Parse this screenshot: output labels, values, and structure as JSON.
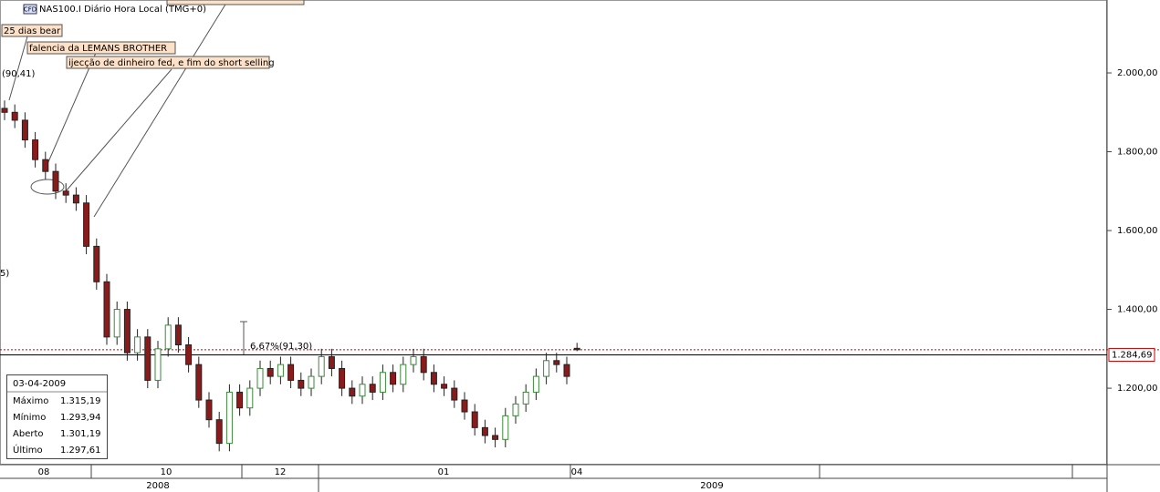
{
  "chart_data": {
    "type": "candlestick",
    "title": "NAS100.I Diário Hora Local (TMG+0)",
    "icon": "CFD",
    "up_color": "#3a8a3a",
    "down_color": "#8b1a1a",
    "grid": false,
    "ylim": [
      1006,
      2185
    ],
    "yticks": [
      {
        "value": 1200,
        "label": "1.200,00"
      },
      {
        "value": 1400,
        "label": "1.400,00"
      },
      {
        "value": 1600,
        "label": "1.600,00"
      },
      {
        "value": 1800,
        "label": "1.800,00"
      },
      {
        "value": 2000,
        "label": "2.000,00"
      }
    ],
    "price_line": {
      "value": 1284.69,
      "label": "1.284,69"
    },
    "month_labels": [
      "08",
      "10",
      "12",
      "01",
      "04"
    ],
    "year_labels": [
      "2008",
      "2009"
    ],
    "open": [
      1910,
      1900,
      1880,
      1830,
      1780,
      1750,
      1700,
      1690,
      1670,
      1560,
      1470,
      1330,
      1400,
      1290,
      1330,
      1220,
      1300,
      1360,
      1310,
      1260,
      1170,
      1120,
      1060,
      1190,
      1150,
      1200,
      1250,
      1230,
      1260,
      1220,
      1200,
      1230,
      1280,
      1250,
      1200,
      1180,
      1210,
      1190,
      1240,
      1210,
      1260,
      1280,
      1240,
      1210,
      1200,
      1170,
      1140,
      1100,
      1080,
      1070,
      1130,
      1160,
      1190,
      1230,
      1270,
      1260,
      1301.19
    ],
    "high": [
      1930,
      1920,
      1900,
      1850,
      1800,
      1770,
      1720,
      1710,
      1690,
      1580,
      1490,
      1420,
      1420,
      1350,
      1350,
      1320,
      1380,
      1380,
      1330,
      1280,
      1190,
      1140,
      1210,
      1210,
      1220,
      1270,
      1270,
      1280,
      1280,
      1240,
      1250,
      1300,
      1300,
      1270,
      1220,
      1230,
      1230,
      1260,
      1260,
      1280,
      1300,
      1300,
      1260,
      1230,
      1220,
      1190,
      1160,
      1120,
      1100,
      1150,
      1180,
      1210,
      1250,
      1290,
      1290,
      1280,
      1315.19
    ],
    "low": [
      1880,
      1860,
      1810,
      1760,
      1730,
      1680,
      1670,
      1650,
      1540,
      1450,
      1310,
      1310,
      1270,
      1270,
      1200,
      1200,
      1280,
      1290,
      1240,
      1150,
      1100,
      1040,
      1040,
      1130,
      1130,
      1180,
      1210,
      1210,
      1200,
      1180,
      1180,
      1210,
      1230,
      1180,
      1160,
      1160,
      1170,
      1170,
      1190,
      1190,
      1240,
      1220,
      1190,
      1180,
      1150,
      1120,
      1080,
      1060,
      1050,
      1050,
      1110,
      1140,
      1170,
      1210,
      1240,
      1210,
      1293.94
    ],
    "close": [
      1900,
      1880,
      1830,
      1780,
      1750,
      1700,
      1690,
      1670,
      1560,
      1470,
      1330,
      1400,
      1290,
      1330,
      1220,
      1300,
      1360,
      1310,
      1260,
      1170,
      1120,
      1060,
      1190,
      1150,
      1200,
      1250,
      1230,
      1260,
      1220,
      1200,
      1230,
      1280,
      1250,
      1200,
      1180,
      1210,
      1190,
      1240,
      1210,
      1260,
      1280,
      1240,
      1210,
      1200,
      1170,
      1140,
      1100,
      1080,
      1070,
      1130,
      1160,
      1190,
      1230,
      1270,
      1260,
      1230,
      1297.61
    ],
    "annotations": [
      "25 dias bear",
      "falencia da LEMANS BROTHER",
      "ijecção de dinheiro fed, e fim do short selling",
      "(90,41)",
      "5)",
      "6,67%(91,30)"
    ],
    "info_box": {
      "date": "03-04-2009",
      "rows": [
        {
          "label": "Máximo",
          "value": "1.315,19"
        },
        {
          "label": "Mínimo",
          "value": "1.293,94"
        },
        {
          "label": "Aberto",
          "value": "1.301,19"
        },
        {
          "label": "Último",
          "value": "1.297,61"
        }
      ]
    }
  }
}
